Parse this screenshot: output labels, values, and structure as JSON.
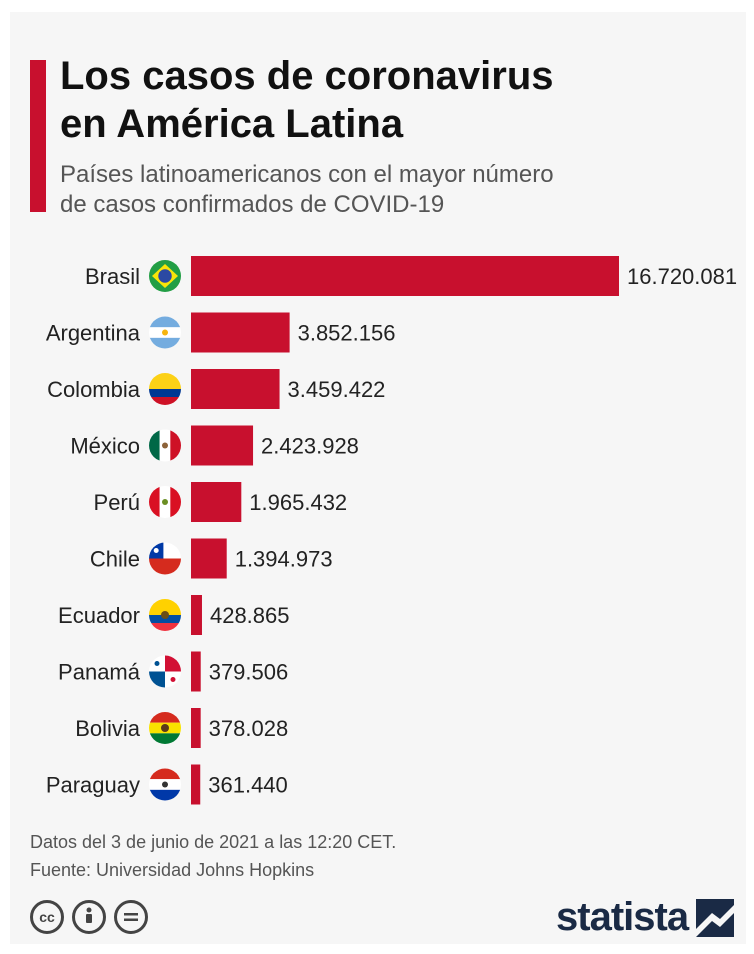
{
  "title_lines": [
    "Los casos de coronavirus",
    "en América Latina"
  ],
  "subtitle_lines": [
    "Países latinoamericanos con el mayor número",
    "de casos confirmados de COVID-19"
  ],
  "colors": {
    "bar": "#c8102e",
    "accent": "#c8102e",
    "logo": "#1a2a45"
  },
  "chart_data": {
    "type": "bar",
    "orientation": "horizontal",
    "title": "Los casos de coronavirus en América Latina",
    "subtitle": "Países latinoamericanos con el mayor número de casos confirmados de COVID-19",
    "categories": [
      "Brasil",
      "Argentina",
      "Colombia",
      "México",
      "Perú",
      "Chile",
      "Ecuador",
      "Panamá",
      "Bolivia",
      "Paraguay"
    ],
    "values": [
      16720081,
      3852156,
      3459422,
      2423928,
      1965432,
      1394973,
      428865,
      379506,
      378028,
      361440
    ],
    "value_labels": [
      "16.720.081",
      "3.852.156",
      "3.459.422",
      "2.423.928",
      "1.965.432",
      "1.394.973",
      "428.865",
      "379.506",
      "378.028",
      "361.440"
    ],
    "flag_icons": [
      "flag-brazil-icon",
      "flag-argentina-icon",
      "flag-colombia-icon",
      "flag-mexico-icon",
      "flag-peru-icon",
      "flag-chile-icon",
      "flag-ecuador-icon",
      "flag-panama-icon",
      "flag-bolivia-icon",
      "flag-paraguay-icon"
    ],
    "grid": false,
    "legend": "none"
  },
  "footer": {
    "note": "Datos del 3 de junio de 2021 a las 12:20 CET.",
    "source": "Fuente: Universidad Johns Hopkins"
  },
  "license_icons": [
    "cc-icon",
    "by-icon",
    "nd-icon"
  ],
  "logo": {
    "text": "statista"
  }
}
